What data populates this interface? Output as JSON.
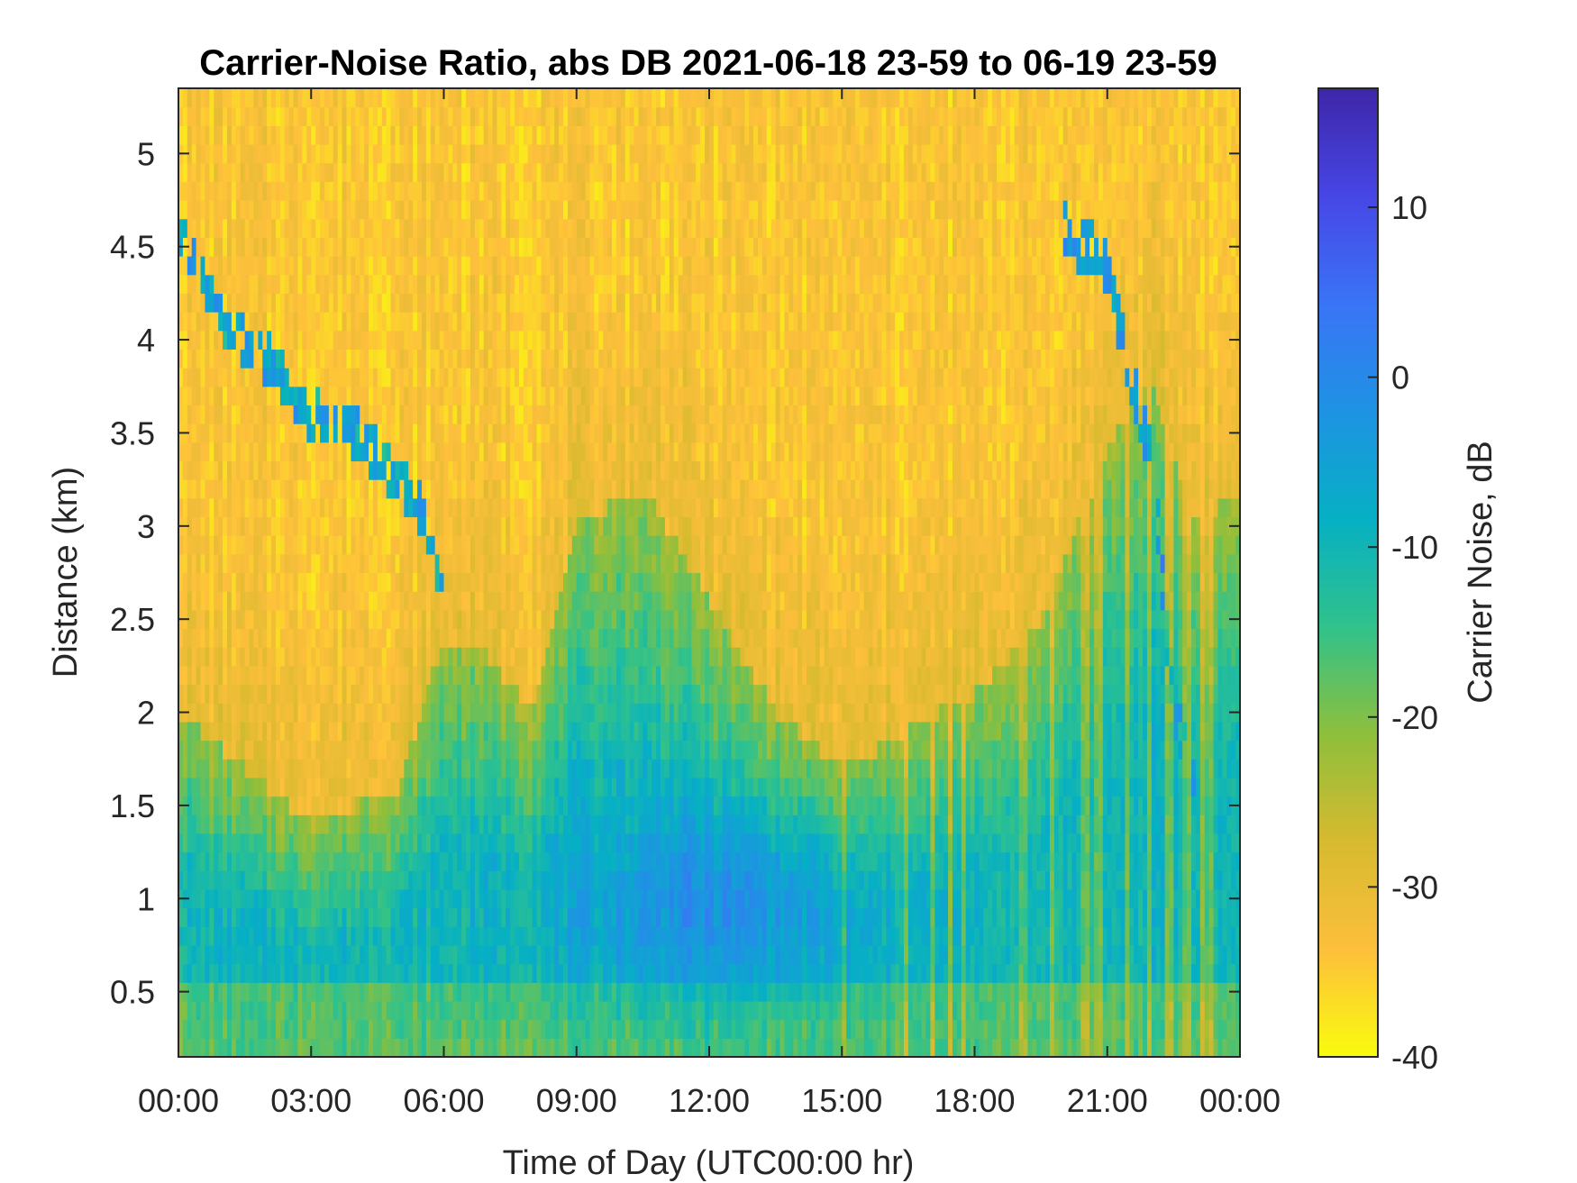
{
  "chart_data": {
    "type": "heatmap",
    "title": "Carrier-Noise Ratio, abs DB 2021-06-18 23-59 to 06-19 23-59",
    "xlabel": "Time of Day (UTC00:00 hr)",
    "ylabel": "Distance (km)",
    "colorbar_label": "Carrier Noise, dB",
    "x_range_hours": [
      0,
      24
    ],
    "y_range_km": [
      0.15,
      5.35
    ],
    "c_range_db": [
      -40,
      17
    ],
    "x_ticks": [
      0,
      3,
      6,
      9,
      12,
      15,
      18,
      21,
      24
    ],
    "x_tick_labels": [
      "00:00",
      "03:00",
      "06:00",
      "09:00",
      "12:00",
      "15:00",
      "18:00",
      "21:00",
      "00:00"
    ],
    "y_ticks": [
      0.5,
      1,
      1.5,
      2,
      2.5,
      3,
      3.5,
      4,
      4.5,
      5
    ],
    "y_tick_labels": [
      "0.5",
      "1",
      "1.5",
      "2",
      "2.5",
      "3",
      "3.5",
      "4",
      "4.5",
      "5"
    ],
    "c_ticks": [
      -40,
      -30,
      -20,
      -10,
      0,
      10
    ],
    "c_tick_labels": [
      "-40",
      "-30",
      "-20",
      "-10",
      "0",
      "10"
    ],
    "colormap": "parula-reversed",
    "colormap_stops": [
      "#f9fb0e",
      "#fdbf3c",
      "#d7ba2f",
      "#8ebf3c",
      "#30c28b",
      "#06b0c4",
      "#1e93e3",
      "#3a74f6",
      "#4746e6",
      "#3e26a8"
    ],
    "boundary_layer_top_km": [
      [
        0,
        2.0
      ],
      [
        1.5,
        1.7
      ],
      [
        3,
        1.4
      ],
      [
        5,
        1.6
      ],
      [
        6,
        2.4
      ],
      [
        7,
        2.3
      ],
      [
        8,
        2.0
      ],
      [
        9,
        3.0
      ],
      [
        10.5,
        3.2
      ],
      [
        12,
        2.6
      ],
      [
        13.5,
        2.0
      ],
      [
        15,
        1.7
      ],
      [
        16.5,
        1.9
      ],
      [
        18,
        2.1
      ],
      [
        19.5,
        2.5
      ],
      [
        21,
        3.4
      ],
      [
        22,
        3.8
      ],
      [
        23,
        3.0
      ],
      [
        24,
        3.2
      ]
    ],
    "aerosol_layer_km": [
      [
        0,
        4.6
      ],
      [
        1,
        4.1
      ],
      [
        2,
        3.9
      ],
      [
        3,
        3.6
      ],
      [
        4,
        3.5
      ],
      [
        5.5,
        3.1
      ],
      [
        6,
        2.6
      ]
    ],
    "aerosol_layer_late_km": [
      [
        20,
        4.6
      ],
      [
        21,
        4.4
      ],
      [
        21.5,
        3.8
      ],
      [
        22,
        3.4
      ],
      [
        22.5,
        2.0
      ],
      [
        23,
        1.6
      ]
    ],
    "max_signal_zone": {
      "hours": [
        9.5,
        14.5
      ],
      "km": [
        0.6,
        1.3
      ],
      "db": 0
    }
  }
}
